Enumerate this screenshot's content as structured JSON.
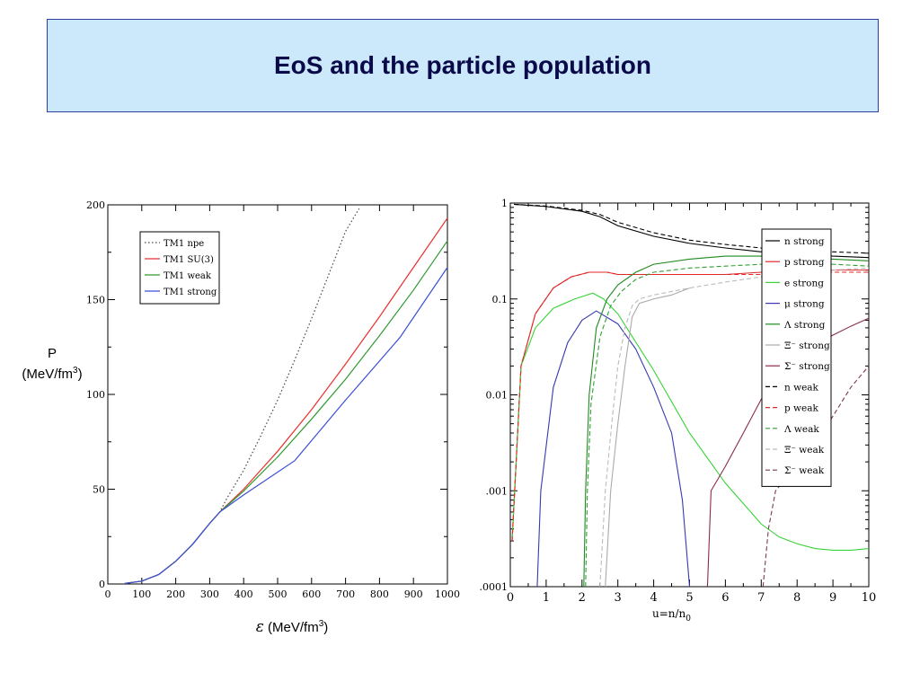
{
  "slide": {
    "title": "EoS and the particle population",
    "left_ylabel_line1": "P",
    "left_ylabel_line2": "(MeV/fm",
    "left_ylabel_sup": "3",
    "left_ylabel_end": ")",
    "left_xlabel_symbol": "ε",
    "left_xlabel_text": "(MeV/fm",
    "left_xlabel_sup": "3",
    "left_xlabel_end": ")"
  },
  "colors": {
    "title_bg": "#cce8fb",
    "title_border": "#2f3f9f"
  },
  "chart_data": [
    {
      "type": "line",
      "xlabel": "ε (MeV/fm³)",
      "ylabel": "P (MeV/fm³)",
      "xlim": [
        0,
        1000
      ],
      "ylim": [
        0,
        200
      ],
      "xticks": [
        0,
        100,
        200,
        300,
        400,
        500,
        600,
        700,
        800,
        900,
        1000
      ],
      "yticks": [
        0,
        50,
        100,
        150,
        200
      ],
      "legend_position": "top-left",
      "series": [
        {
          "name": "TM1 npe",
          "color": "#444444",
          "dash": "dotted",
          "x": [
            50,
            100,
            150,
            200,
            250,
            300,
            330,
            350,
            400,
            450,
            500,
            550,
            600,
            650,
            700,
            740
          ],
          "y": [
            0.3,
            1.5,
            5,
            12,
            21,
            32,
            38,
            45,
            60,
            78,
            97,
            118,
            140,
            163,
            186,
            198
          ]
        },
        {
          "name": "TM1 SU(3)",
          "color": "#e8302c",
          "dash": "solid",
          "x": [
            50,
            100,
            150,
            200,
            250,
            300,
            330,
            400,
            500,
            600,
            700,
            800,
            900,
            1000
          ],
          "y": [
            0.3,
            1.5,
            5,
            12,
            21,
            32,
            38,
            50,
            70,
            92,
            116,
            141,
            167,
            193
          ]
        },
        {
          "name": "TM1 weak",
          "color": "#2f9a2f",
          "dash": "solid",
          "x": [
            50,
            100,
            150,
            200,
            250,
            300,
            330,
            400,
            500,
            600,
            700,
            800,
            900,
            1000
          ],
          "y": [
            0.3,
            1.5,
            5,
            12,
            21,
            32,
            38,
            49,
            67,
            87,
            108,
            131,
            155,
            181
          ]
        },
        {
          "name": "TM1 strong",
          "color": "#3c4fd8",
          "dash": "solid",
          "x": [
            50,
            100,
            150,
            200,
            250,
            300,
            330,
            400,
            550,
            700,
            860,
            1000
          ],
          "y": [
            0.3,
            1.5,
            5,
            12,
            21,
            32,
            38,
            47,
            65,
            97,
            130,
            167
          ]
        }
      ]
    },
    {
      "type": "line",
      "xlabel": "u=n/n0",
      "xlabel_main": "u=n/n",
      "xlabel_sub": "0",
      "ylabel": "",
      "log_y": true,
      "xlim": [
        0,
        10
      ],
      "ylim": [
        0.0001,
        1
      ],
      "xticks": [
        0,
        1,
        2,
        3,
        4,
        5,
        6,
        7,
        8,
        9,
        10
      ],
      "yticks": [
        0.0001,
        0.001,
        0.01,
        0.1,
        1
      ],
      "ytick_labels": [
        ".0001",
        ".001",
        "0.01",
        "0.1",
        "1"
      ],
      "legend_position": "right",
      "series": [
        {
          "name": "n strong",
          "color": "#000000",
          "dash": "solid",
          "x": [
            0.1,
            1,
            2,
            2.5,
            3,
            4,
            5,
            6,
            7,
            8,
            9,
            10
          ],
          "y": [
            0.97,
            0.92,
            0.82,
            0.72,
            0.58,
            0.45,
            0.38,
            0.34,
            0.31,
            0.3,
            0.28,
            0.27
          ]
        },
        {
          "name": "p strong",
          "color": "#e02828",
          "dash": "solid",
          "x": [
            0.05,
            0.3,
            0.7,
            1.2,
            1.7,
            2.2,
            2.7,
            3,
            4,
            5,
            6,
            7,
            8,
            9,
            10
          ],
          "y": [
            0.0003,
            0.02,
            0.07,
            0.13,
            0.17,
            0.19,
            0.19,
            0.18,
            0.18,
            0.18,
            0.18,
            0.19,
            0.19,
            0.2,
            0.2
          ]
        },
        {
          "name": "e strong",
          "color": "#36d436",
          "dash": "solid",
          "x": [
            0.05,
            0.3,
            0.7,
            1.2,
            1.8,
            2.3,
            2.6,
            3,
            4,
            5,
            6,
            7,
            7.5,
            8,
            8.5,
            9,
            9.5,
            10
          ],
          "y": [
            0.0003,
            0.02,
            0.05,
            0.08,
            0.1,
            0.115,
            0.1,
            0.07,
            0.018,
            0.004,
            0.0012,
            0.00045,
            0.00033,
            0.00028,
            0.00025,
            0.00024,
            0.00024,
            0.00025
          ]
        },
        {
          "name": "μ strong",
          "color": "#3838b0",
          "dash": "solid",
          "x": [
            0.75,
            0.85,
            1.2,
            1.6,
            2.0,
            2.4,
            3,
            3.5,
            4,
            4.5,
            4.8,
            5
          ],
          "y": [
            0.0001,
            0.001,
            0.012,
            0.035,
            0.06,
            0.075,
            0.055,
            0.03,
            0.012,
            0.004,
            0.0008,
            0.0001
          ]
        },
        {
          "name": "Λ strong",
          "color": "#1e8a1e",
          "dash": "solid",
          "x": [
            2.05,
            2.1,
            2.2,
            2.4,
            2.7,
            3,
            3.5,
            4,
            5,
            6,
            7,
            8,
            9,
            10
          ],
          "y": [
            0.0001,
            0.001,
            0.01,
            0.05,
            0.1,
            0.14,
            0.19,
            0.23,
            0.26,
            0.28,
            0.28,
            0.27,
            0.26,
            0.25
          ]
        },
        {
          "name": "Ξ⁻ strong",
          "color": "#aaaaaa",
          "dash": "solid",
          "x": [
            2.65,
            2.8,
            3.0,
            3.2,
            3.4,
            3.6,
            4,
            4.5,
            5
          ],
          "y": [
            0.0001,
            0.001,
            0.005,
            0.02,
            0.065,
            0.09,
            0.1,
            0.11,
            0.13
          ]
        },
        {
          "name": "Σ⁻ strong",
          "color": "#8a2a50",
          "dash": "solid",
          "x": [
            5.5,
            5.6,
            6,
            6.5,
            7,
            7.5,
            8,
            8.5,
            9,
            9.5,
            10
          ],
          "y": [
            0.0001,
            0.001,
            0.0018,
            0.004,
            0.009,
            0.016,
            0.025,
            0.033,
            0.042,
            0.052,
            0.063
          ]
        },
        {
          "name": "n weak",
          "color": "#000000",
          "dash": "dashed",
          "x": [
            0.1,
            1,
            2,
            2.5,
            3,
            4,
            5,
            6,
            7,
            8,
            9,
            10
          ],
          "y": [
            0.97,
            0.93,
            0.84,
            0.76,
            0.63,
            0.49,
            0.41,
            0.37,
            0.34,
            0.32,
            0.31,
            0.3
          ]
        },
        {
          "name": "p weak",
          "color": "#e02828",
          "dash": "dashed",
          "x": [
            0.05,
            0.3,
            0.7,
            1.2,
            1.7,
            2.2,
            2.7,
            3,
            4,
            5,
            6,
            7,
            8,
            9,
            10
          ],
          "y": [
            0.0003,
            0.02,
            0.07,
            0.13,
            0.17,
            0.19,
            0.19,
            0.18,
            0.18,
            0.18,
            0.18,
            0.18,
            0.19,
            0.19,
            0.19
          ]
        },
        {
          "name": "Λ weak",
          "color": "#2fa02f",
          "dash": "dashed",
          "x": [
            2.1,
            2.15,
            2.25,
            2.5,
            2.8,
            3.1,
            3.5,
            4,
            5,
            6,
            7,
            8,
            9,
            10
          ],
          "y": [
            0.0001,
            0.001,
            0.008,
            0.04,
            0.085,
            0.12,
            0.16,
            0.19,
            0.21,
            0.22,
            0.23,
            0.23,
            0.23,
            0.22
          ]
        },
        {
          "name": "Ξ⁻ weak",
          "color": "#bbbbbb",
          "dash": "dashed",
          "x": [
            2.5,
            2.65,
            2.85,
            3.0,
            3.2,
            3.4,
            3.6,
            4,
            5,
            6,
            7,
            8,
            9,
            10
          ],
          "y": [
            0.0001,
            0.001,
            0.006,
            0.02,
            0.05,
            0.085,
            0.1,
            0.11,
            0.13,
            0.15,
            0.17,
            0.19,
            0.2,
            0.21
          ]
        },
        {
          "name": "Σ⁻ weak",
          "color": "#7a3a50",
          "dash": "dashed",
          "x": [
            7.05,
            7.2,
            7.4,
            7.8,
            8.2,
            8.6,
            9,
            9.5,
            10
          ],
          "y": [
            0.0001,
            0.0004,
            0.001,
            0.0015,
            0.0022,
            0.0035,
            0.006,
            0.012,
            0.02
          ]
        }
      ]
    }
  ]
}
